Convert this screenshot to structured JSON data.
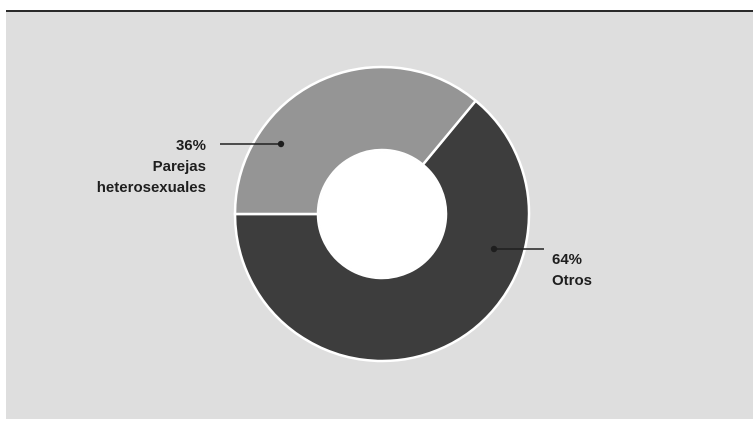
{
  "chart_data": {
    "type": "pie",
    "variant": "donut",
    "slices": [
      {
        "label": "Otros",
        "percent_text": "64%",
        "value": 64,
        "color": "#3d3d3d"
      },
      {
        "label_lines": [
          "Parejas",
          "heterosexuales"
        ],
        "percent_text": "36%",
        "value": 36,
        "color": "#959595"
      }
    ],
    "start_direction": "left",
    "title": "",
    "legend": "none"
  },
  "colors": {
    "background": "#dedede",
    "top_rule": "#2b2b2b",
    "slice_border": "#ffffff",
    "hole": "#ffffff",
    "leader_line": "#1e1e1e"
  }
}
